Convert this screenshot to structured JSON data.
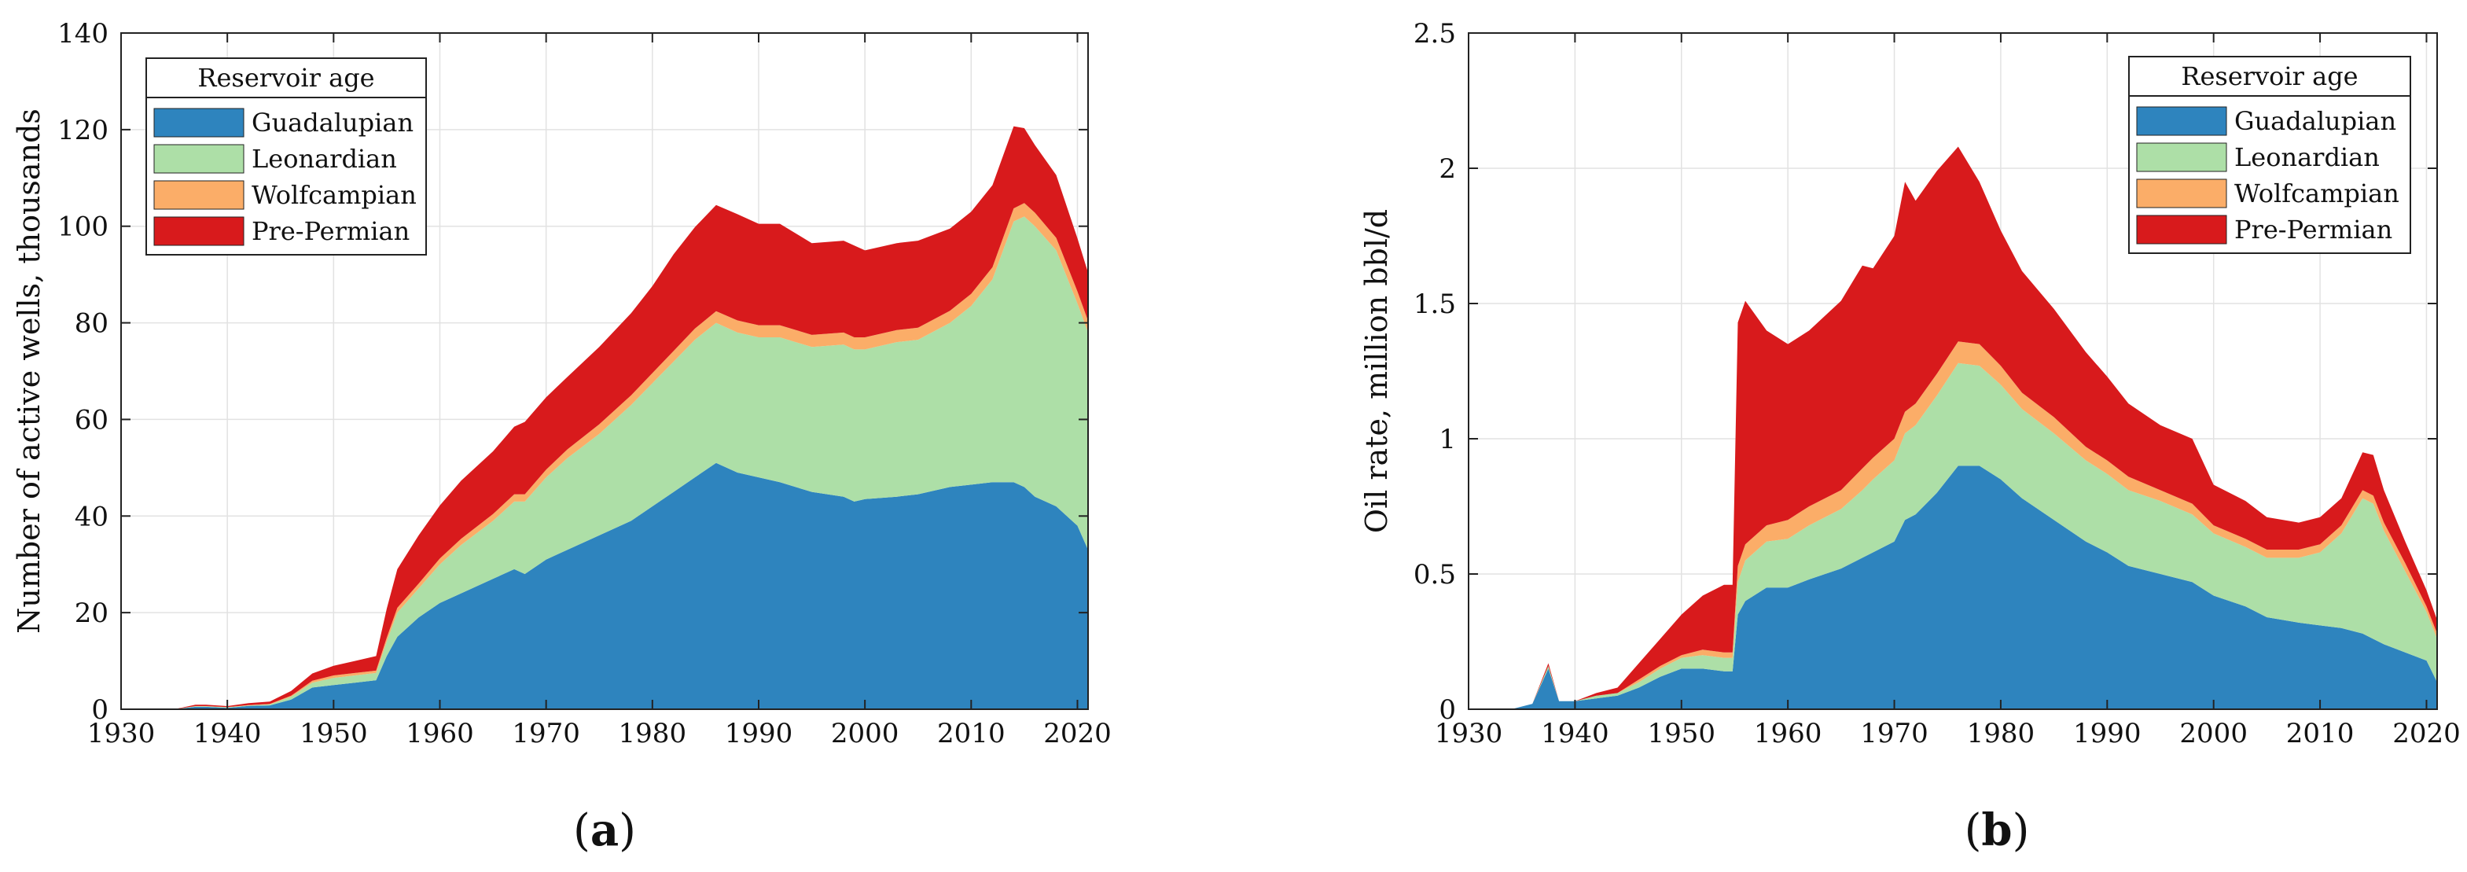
{
  "colors": {
    "guadalupian": "#2e84be",
    "leonardian": "#addfa7",
    "wolfcampian": "#fbad68",
    "pre_permian": "#d81a1c"
  },
  "chart_data": [
    {
      "type": "area",
      "panel_label": "a",
      "xlabel": "",
      "ylabel": "Number of active wells, thousands",
      "xlim": [
        1930,
        2021
      ],
      "ylim": [
        0,
        140
      ],
      "x_ticks": [
        "1930",
        "1940",
        "1950",
        "1960",
        "1970",
        "1980",
        "1990",
        "2000",
        "2010",
        "2020"
      ],
      "y_ticks": [
        "0",
        "20",
        "40",
        "60",
        "80",
        "100",
        "120",
        "140"
      ],
      "grid": true,
      "legend": {
        "title": "Reservoir age",
        "placement": "top-left",
        "entries": [
          "Guadalupian",
          "Leonardian",
          "Wolfcampian",
          "Pre-Permian"
        ]
      },
      "stacked": true,
      "x": [
        1930,
        1935,
        1937,
        1938,
        1940,
        1942,
        1944,
        1946,
        1948,
        1950,
        1952,
        1954,
        1955,
        1956,
        1958,
        1960,
        1962,
        1965,
        1967,
        1968,
        1970,
        1971,
        1972,
        1975,
        1978,
        1980,
        1982,
        1984,
        1986,
        1988,
        1990,
        1992,
        1995,
        1998,
        1999,
        2000,
        2003,
        2005,
        2008,
        2010,
        2012,
        2014,
        2015,
        2016,
        2018,
        2020,
        2021
      ],
      "series": [
        {
          "name": "Guadalupian",
          "values": [
            0,
            0,
            0.5,
            0.5,
            0.3,
            0.7,
            0.8,
            2,
            4.5,
            5,
            5.5,
            6,
            11,
            15,
            19,
            22,
            24,
            27,
            29,
            28,
            31,
            32,
            33,
            36,
            39,
            42,
            45,
            48,
            51,
            49,
            48,
            47,
            45,
            44,
            43,
            43.5,
            44,
            44.5,
            46,
            46.5,
            47,
            47,
            46,
            44,
            42,
            38,
            33
          ]
        },
        {
          "name": "Leonardian",
          "values": [
            0,
            0,
            0.1,
            0.1,
            0.1,
            0.1,
            0.2,
            0.6,
            1,
            1.5,
            1.5,
            1.5,
            3,
            5,
            6,
            8,
            10,
            12,
            14,
            15,
            17,
            18,
            19,
            21,
            24,
            25.5,
            27,
            28.5,
            29,
            29,
            29,
            30,
            30,
            31.5,
            31.5,
            31,
            32,
            32,
            34,
            37,
            42,
            54,
            56,
            56,
            53,
            46,
            45
          ]
        },
        {
          "name": "Wolfcampian",
          "values": [
            0,
            0,
            0.05,
            0.05,
            0.05,
            0.05,
            0.1,
            0.2,
            0.4,
            0.5,
            0.5,
            0.5,
            0.8,
            1,
            1,
            1.2,
            1.3,
            1.4,
            1.5,
            1.5,
            1.6,
            1.7,
            1.8,
            2,
            2,
            2.1,
            2.2,
            2.3,
            2.4,
            2.5,
            2.5,
            2.5,
            2.5,
            2.5,
            2.5,
            2.5,
            2.5,
            2.5,
            2.5,
            2.5,
            2.5,
            2.7,
            2.8,
            2.8,
            2.6,
            2.5,
            2.4
          ]
        },
        {
          "name": "Pre-Permian",
          "values": [
            0,
            0,
            0.3,
            0.3,
            0.2,
            0.4,
            0.5,
            1,
            1.5,
            2,
            2.5,
            3,
            6,
            8,
            10,
            11,
            12,
            13,
            14,
            15,
            15,
            15,
            15,
            16,
            17,
            18,
            20,
            21,
            22,
            22,
            21,
            21,
            19,
            19,
            19,
            18,
            18,
            18,
            17,
            17,
            17,
            17,
            15.5,
            14,
            13,
            11,
            10
          ]
        }
      ]
    },
    {
      "type": "area",
      "panel_label": "b",
      "xlabel": "",
      "ylabel": "Oil rate, million bbl/d",
      "xlim": [
        1930,
        2021
      ],
      "ylim": [
        0,
        2.5
      ],
      "x_ticks": [
        "1930",
        "1940",
        "1950",
        "1960",
        "1970",
        "1980",
        "1990",
        "2000",
        "2010",
        "2020"
      ],
      "y_ticks": [
        "0",
        "0.5",
        "1",
        "1.5",
        "2",
        "2.5"
      ],
      "grid": true,
      "legend": {
        "title": "Reservoir age",
        "placement": "top-right",
        "entries": [
          "Guadalupian",
          "Leonardian",
          "Wolfcampian",
          "Pre-Permian"
        ]
      },
      "stacked": true,
      "x": [
        1930,
        1934,
        1936,
        1937.5,
        1938.5,
        1940,
        1942,
        1944,
        1946,
        1948,
        1950,
        1952,
        1954,
        1954.8,
        1955.3,
        1956,
        1958,
        1960,
        1962,
        1965,
        1967,
        1968,
        1970,
        1971,
        1972,
        1974,
        1976,
        1978,
        1980,
        1982,
        1985,
        1988,
        1990,
        1992,
        1995,
        1998,
        2000,
        2003,
        2005,
        2008,
        2010,
        2012,
        2014,
        2015,
        2016,
        2018,
        2020,
        2021
      ],
      "series": [
        {
          "name": "Guadalupian",
          "values": [
            0,
            0,
            0.02,
            0.15,
            0.03,
            0.03,
            0.04,
            0.05,
            0.08,
            0.12,
            0.15,
            0.15,
            0.14,
            0.14,
            0.35,
            0.4,
            0.45,
            0.45,
            0.48,
            0.52,
            0.56,
            0.58,
            0.62,
            0.7,
            0.72,
            0.8,
            0.9,
            0.9,
            0.85,
            0.78,
            0.7,
            0.62,
            0.58,
            0.53,
            0.5,
            0.47,
            0.42,
            0.38,
            0.34,
            0.32,
            0.31,
            0.3,
            0.28,
            0.26,
            0.24,
            0.21,
            0.18,
            0.1
          ]
        },
        {
          "name": "Leonardian",
          "values": [
            0,
            0,
            0,
            0.01,
            0,
            0,
            0.01,
            0.01,
            0.02,
            0.03,
            0.04,
            0.05,
            0.05,
            0.05,
            0.12,
            0.15,
            0.17,
            0.18,
            0.2,
            0.22,
            0.25,
            0.27,
            0.3,
            0.32,
            0.33,
            0.36,
            0.38,
            0.37,
            0.35,
            0.33,
            0.32,
            0.3,
            0.29,
            0.28,
            0.27,
            0.25,
            0.23,
            0.22,
            0.22,
            0.24,
            0.27,
            0.35,
            0.5,
            0.5,
            0.42,
            0.3,
            0.18,
            0.16
          ]
        },
        {
          "name": "Wolfcampian",
          "values": [
            0,
            0,
            0,
            0,
            0,
            0,
            0,
            0,
            0.01,
            0.01,
            0.01,
            0.02,
            0.02,
            0.02,
            0.06,
            0.06,
            0.06,
            0.07,
            0.07,
            0.07,
            0.08,
            0.08,
            0.08,
            0.08,
            0.08,
            0.08,
            0.08,
            0.08,
            0.07,
            0.06,
            0.06,
            0.05,
            0.05,
            0.05,
            0.04,
            0.04,
            0.03,
            0.03,
            0.03,
            0.03,
            0.03,
            0.03,
            0.03,
            0.03,
            0.03,
            0.03,
            0.02,
            0.02
          ]
        },
        {
          "name": "Pre-Permian",
          "values": [
            0,
            0,
            0,
            0.01,
            0,
            0,
            0.01,
            0.02,
            0.06,
            0.1,
            0.15,
            0.2,
            0.25,
            0.25,
            0.9,
            0.9,
            0.72,
            0.65,
            0.65,
            0.7,
            0.75,
            0.7,
            0.75,
            0.85,
            0.75,
            0.75,
            0.72,
            0.6,
            0.5,
            0.45,
            0.4,
            0.35,
            0.31,
            0.27,
            0.24,
            0.24,
            0.15,
            0.14,
            0.12,
            0.1,
            0.1,
            0.1,
            0.14,
            0.15,
            0.12,
            0.08,
            0.06,
            0.05
          ]
        }
      ]
    }
  ]
}
